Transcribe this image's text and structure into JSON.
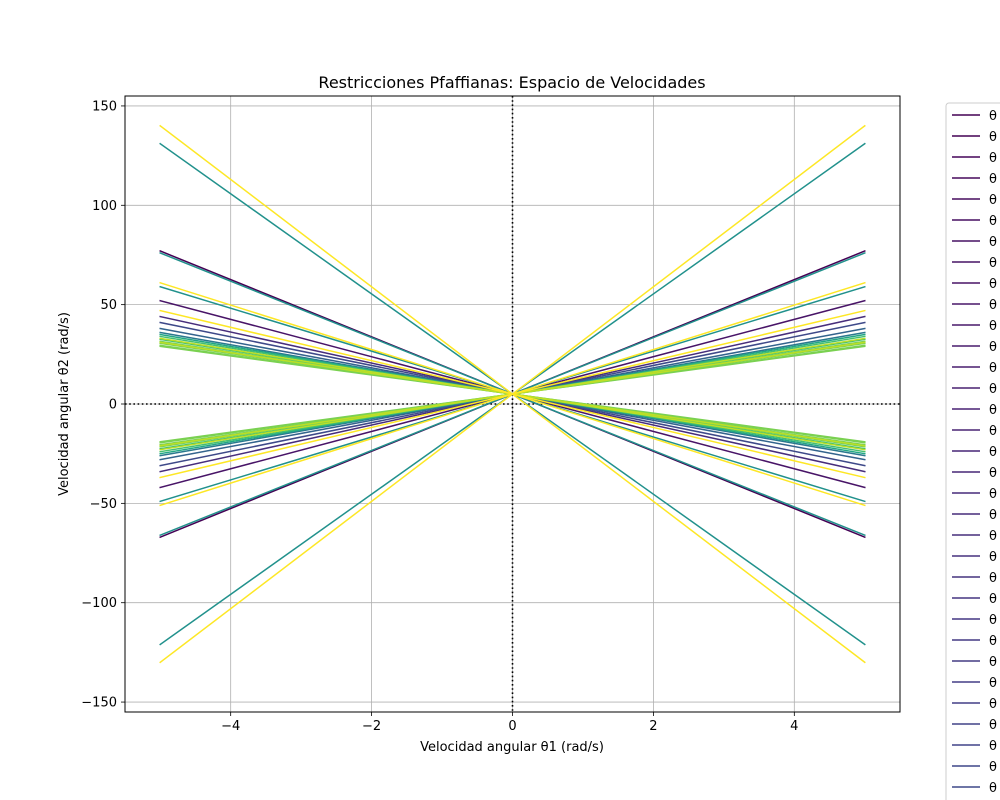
{
  "chart_data": {
    "type": "line",
    "title": "Restricciones Pfaffianas: Espacio de Velocidades",
    "xlabel": "Velocidad angular θ1 (rad/s)",
    "ylabel": "Velocidad angular θ2 (rad/s)",
    "xlim": [
      -5.5,
      5.5
    ],
    "ylim": [
      -155,
      155
    ],
    "x_ticks": [
      -4,
      -2,
      0,
      2,
      4
    ],
    "x_tick_labels": [
      "−4",
      "−2",
      "0",
      "2",
      "4"
    ],
    "y_ticks": [
      -150,
      -100,
      -50,
      0,
      50,
      100,
      150
    ],
    "y_tick_labels": [
      "−150",
      "−100",
      "−50",
      "0",
      "50",
      "100",
      "150"
    ],
    "grid": true,
    "reference_lines": {
      "x": 0,
      "y": 0,
      "style": "dotted",
      "color": "#000000"
    },
    "x": [
      -5,
      5
    ],
    "legend": {
      "placement": "outside-right",
      "visible_entries": 33,
      "entry_text": "θ"
    },
    "series": [
      {
        "color": "#440154",
        "values": [
          77,
          -67
        ]
      },
      {
        "color": "#440154",
        "values": [
          -67,
          77
        ]
      },
      {
        "color": "#481467",
        "values": [
          52,
          -42
        ]
      },
      {
        "color": "#481467",
        "values": [
          -42,
          52
        ]
      },
      {
        "color": "#472d7b",
        "values": [
          44,
          -34
        ]
      },
      {
        "color": "#472d7b",
        "values": [
          -34,
          44
        ]
      },
      {
        "color": "#3e4989",
        "values": [
          41,
          -31
        ]
      },
      {
        "color": "#3e4989",
        "values": [
          -31,
          41
        ]
      },
      {
        "color": "#33638d",
        "values": [
          38,
          -28
        ]
      },
      {
        "color": "#33638d",
        "values": [
          -28,
          38
        ]
      },
      {
        "color": "#2a788e",
        "values": [
          36,
          -26
        ]
      },
      {
        "color": "#2a788e",
        "values": [
          -26,
          36
        ]
      },
      {
        "color": "#21918c",
        "values": [
          131,
          -121
        ]
      },
      {
        "color": "#21918c",
        "values": [
          -121,
          131
        ]
      },
      {
        "color": "#21918c",
        "values": [
          76,
          -66
        ]
      },
      {
        "color": "#21918c",
        "values": [
          -66,
          76
        ]
      },
      {
        "color": "#21918c",
        "values": [
          59,
          -49
        ]
      },
      {
        "color": "#21918c",
        "values": [
          -49,
          59
        ]
      },
      {
        "color": "#22a884",
        "values": [
          35,
          -25
        ]
      },
      {
        "color": "#22a884",
        "values": [
          -25,
          35
        ]
      },
      {
        "color": "#44bf70",
        "values": [
          34,
          -24
        ]
      },
      {
        "color": "#44bf70",
        "values": [
          -24,
          34
        ]
      },
      {
        "color": "#44bf70",
        "values": [
          32.5,
          -22.5
        ]
      },
      {
        "color": "#44bf70",
        "values": [
          -22.5,
          32.5
        ]
      },
      {
        "color": "#7ad151",
        "values": [
          31.5,
          -21.5
        ]
      },
      {
        "color": "#7ad151",
        "values": [
          -21.5,
          31.5
        ]
      },
      {
        "color": "#7ad151",
        "values": [
          30.5,
          -20.5
        ]
      },
      {
        "color": "#7ad151",
        "values": [
          -20.5,
          30.5
        ]
      },
      {
        "color": "#7ad151",
        "values": [
          29.5,
          -19.5
        ]
      },
      {
        "color": "#7ad151",
        "values": [
          -19.5,
          29.5
        ]
      },
      {
        "color": "#7ad151",
        "values": [
          29,
          -19
        ]
      },
      {
        "color": "#7ad151",
        "values": [
          -19,
          29
        ]
      },
      {
        "color": "#bddf26",
        "values": [
          33,
          -23
        ]
      },
      {
        "color": "#bddf26",
        "values": [
          -23,
          33
        ]
      },
      {
        "color": "#bddf26",
        "values": [
          31,
          -21
        ]
      },
      {
        "color": "#bddf26",
        "values": [
          -21,
          31
        ]
      },
      {
        "color": "#fde725",
        "values": [
          140,
          -130
        ]
      },
      {
        "color": "#fde725",
        "values": [
          -130,
          140
        ]
      },
      {
        "color": "#fde725",
        "values": [
          61,
          -51
        ]
      },
      {
        "color": "#fde725",
        "values": [
          -51,
          61
        ]
      },
      {
        "color": "#fde725",
        "values": [
          47,
          -37
        ]
      },
      {
        "color": "#fde725",
        "values": [
          -37,
          47
        ]
      }
    ],
    "legend_colors": [
      "#440154",
      "#440154",
      "#450559",
      "#46085c",
      "#460b5e",
      "#470e61",
      "#471164",
      "#471365",
      "#481467",
      "#481769",
      "#48186a",
      "#481b6d",
      "#481d6f",
      "#482071",
      "#482173",
      "#482374",
      "#472576",
      "#472777",
      "#472a7a",
      "#472c7a",
      "#462e7c",
      "#46307e",
      "#45337f",
      "#453581",
      "#443783",
      "#443983",
      "#433b84",
      "#433d85",
      "#423f85",
      "#414287",
      "#404488",
      "#3f4788",
      "#3e4989"
    ]
  }
}
